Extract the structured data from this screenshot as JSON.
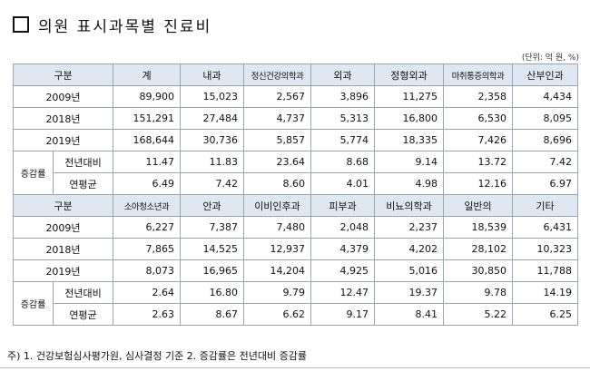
{
  "title": "의원 표시과목별 진료비",
  "unit": "(단위: 억 원, %)",
  "table1": {
    "corner": "구분",
    "headers": [
      "계",
      "내과",
      "정신건강의학과",
      "외과",
      "정형외과",
      "마취통증의학과",
      "산부인과"
    ],
    "rows": [
      {
        "label": "2009년",
        "values": [
          "89,900",
          "15,023",
          "2,567",
          "3,896",
          "11,275",
          "2,358",
          "4,434"
        ]
      },
      {
        "label": "2018년",
        "values": [
          "151,291",
          "27,484",
          "4,737",
          "5,313",
          "16,800",
          "6,530",
          "8,095"
        ]
      },
      {
        "label": "2019년",
        "values": [
          "168,644",
          "30,736",
          "5,857",
          "5,774",
          "18,335",
          "7,426",
          "8,696"
        ]
      }
    ],
    "growth": {
      "group_label": "증감률",
      "rows": [
        {
          "label": "전년대비",
          "values": [
            "11.47",
            "11.83",
            "23.64",
            "8.68",
            "9.14",
            "13.72",
            "7.42"
          ]
        },
        {
          "label": "연평균",
          "values": [
            "6.49",
            "7.42",
            "8.60",
            "4.01",
            "4.98",
            "12.16",
            "6.97"
          ]
        }
      ]
    }
  },
  "table2": {
    "corner": "구분",
    "headers": [
      "소아청소년과",
      "안과",
      "이비인후과",
      "피부과",
      "비뇨의학과",
      "일반의",
      "기타"
    ],
    "rows": [
      {
        "label": "2009년",
        "values": [
          "6,227",
          "7,387",
          "7,480",
          "2,048",
          "2,237",
          "18,539",
          "6,431"
        ]
      },
      {
        "label": "2018년",
        "values": [
          "7,865",
          "14,525",
          "12,937",
          "4,379",
          "4,202",
          "28,102",
          "10,323"
        ]
      },
      {
        "label": "2019년",
        "values": [
          "8,073",
          "16,965",
          "14,204",
          "4,925",
          "5,016",
          "30,850",
          "11,788"
        ]
      }
    ],
    "growth": {
      "group_label": "증감률",
      "rows": [
        {
          "label": "전년대비",
          "values": [
            "2.64",
            "16.80",
            "9.79",
            "12.47",
            "19.37",
            "9.78",
            "14.19"
          ]
        },
        {
          "label": "연평균",
          "values": [
            "2.63",
            "8.67",
            "6.62",
            "9.17",
            "8.41",
            "5.22",
            "6.25"
          ]
        }
      ]
    }
  },
  "footnote": "주) 1. 건강보험심사평가원, 심사결정 기준 2. 증감률은 전년대비 증감률"
}
